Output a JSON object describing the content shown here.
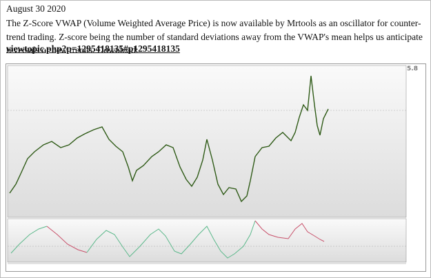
{
  "post": {
    "date": "August 30 2020",
    "text": "The Z-Score VWAP (Volume Weighted Average Price) is now available by Mrtools as an oscillator for counter-trend trading. Z-score being the number of standard deviations away from the VWAP's mean helps us anticipate reversals or new trends. Download:",
    "link": "viewtopic.php?p=1295418135#p1295418135",
    "image": {
      "label": "5.8"
    }
  }
}
